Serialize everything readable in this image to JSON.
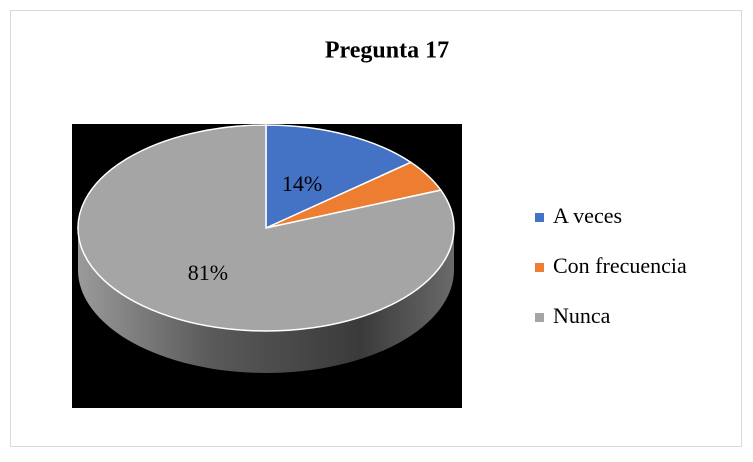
{
  "chart_data": {
    "type": "pie",
    "title": "Pregunta 17",
    "categories": [
      "A veces",
      "Con frecuencia",
      "Nunca"
    ],
    "values": [
      14,
      5,
      81
    ],
    "value_labels": [
      "14%",
      null,
      "81%"
    ],
    "colors": [
      "#4472c4",
      "#ed7d31",
      "#a5a5a5"
    ],
    "legend": "right"
  }
}
